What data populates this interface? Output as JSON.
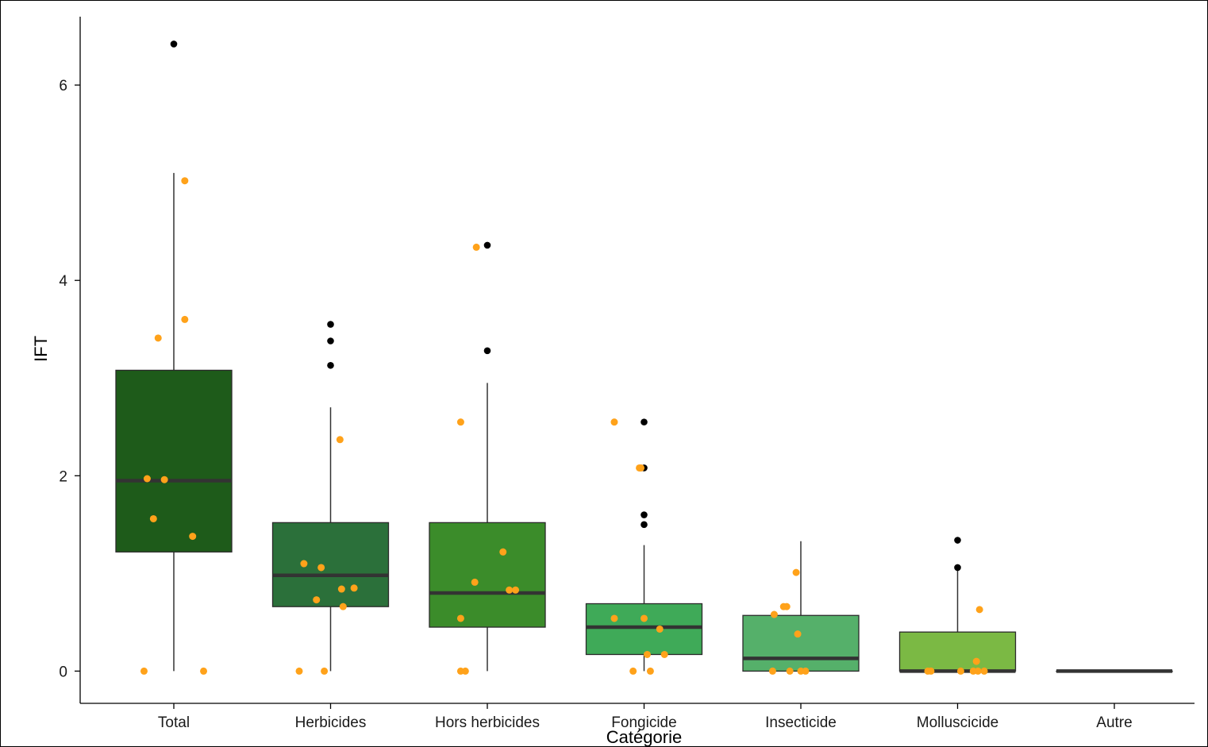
{
  "chart_data": {
    "type": "boxplot",
    "xlabel": "Catégorie",
    "ylabel": "IFT",
    "ylim": [
      -0.33,
      6.7
    ],
    "yticks": [
      0,
      2,
      4,
      6
    ],
    "categories": [
      "Total",
      "Herbicides",
      "Hors herbicides",
      "Fongicide",
      "Insecticide",
      "Molluscicide",
      "Autre"
    ],
    "fill_colors": [
      "#1e5b1a",
      "#2b703a",
      "#3b8c2a",
      "#3faa58",
      "#55b06a",
      "#7bb944",
      "#7bb944"
    ],
    "point_color": "#ffa21a",
    "outlier_color": "#000000",
    "boxes": [
      {
        "q1": 1.22,
        "median": 1.95,
        "q3": 3.08,
        "whisker_low": 0.0,
        "whisker_high": 5.1,
        "outliers": [
          6.42
        ]
      },
      {
        "q1": 0.66,
        "median": 0.98,
        "q3": 1.52,
        "whisker_low": 0.0,
        "whisker_high": 2.7,
        "outliers": [
          3.55,
          3.38,
          3.13
        ]
      },
      {
        "q1": 0.45,
        "median": 0.8,
        "q3": 1.52,
        "whisker_low": 0.0,
        "whisker_high": 2.95,
        "outliers": [
          4.36,
          3.28
        ]
      },
      {
        "q1": 0.17,
        "median": 0.45,
        "q3": 0.69,
        "whisker_low": 0.0,
        "whisker_high": 1.29,
        "outliers": [
          2.55,
          2.08,
          1.6,
          1.5
        ]
      },
      {
        "q1": 0.0,
        "median": 0.13,
        "q3": 0.57,
        "whisker_low": 0.0,
        "whisker_high": 1.33,
        "outliers": []
      },
      {
        "q1": 0.0,
        "median": 0.0,
        "q3": 0.4,
        "whisker_low": 0.0,
        "whisker_high": 1.05,
        "outliers": [
          1.34,
          1.06
        ]
      },
      {
        "q1": 0.0,
        "median": 0.0,
        "q3": 0.0,
        "whisker_low": 0.0,
        "whisker_high": 0.0,
        "outliers": []
      }
    ],
    "jitter_points": [
      [
        [
          -0.19,
          0.0
        ],
        [
          0.19,
          0.0
        ],
        [
          -0.17,
          1.97
        ],
        [
          -0.06,
          1.96
        ],
        [
          -0.13,
          1.56
        ],
        [
          0.12,
          1.38
        ],
        [
          0.07,
          3.6
        ],
        [
          0.07,
          5.02
        ],
        [
          -0.1,
          3.41
        ]
      ],
      [
        [
          -0.2,
          0.0
        ],
        [
          -0.04,
          0.0
        ],
        [
          -0.17,
          1.1
        ],
        [
          -0.06,
          1.06
        ],
        [
          -0.09,
          0.73
        ],
        [
          0.07,
          0.84
        ],
        [
          0.15,
          0.85
        ],
        [
          0.08,
          0.66
        ],
        [
          0.06,
          2.37
        ]
      ],
      [
        [
          -0.17,
          0.0
        ],
        [
          -0.14,
          0.0
        ],
        [
          -0.17,
          0.54
        ],
        [
          -0.08,
          0.91
        ],
        [
          0.1,
          1.22
        ],
        [
          0.14,
          0.83
        ],
        [
          0.18,
          0.83
        ],
        [
          -0.07,
          4.34
        ],
        [
          -0.17,
          2.55
        ]
      ],
      [
        [
          -0.07,
          0.0
        ],
        [
          0.04,
          0.0
        ],
        [
          -0.19,
          0.54
        ],
        [
          0.0,
          0.54
        ],
        [
          0.1,
          0.43
        ],
        [
          0.02,
          0.17
        ],
        [
          0.13,
          0.17
        ],
        [
          -0.19,
          2.55
        ],
        [
          -0.03,
          2.08
        ],
        [
          -0.02,
          2.08
        ]
      ],
      [
        [
          -0.18,
          0.0
        ],
        [
          -0.07,
          0.0
        ],
        [
          0.0,
          0.0
        ],
        [
          0.03,
          0.0
        ],
        [
          -0.17,
          0.58
        ],
        [
          -0.11,
          0.66
        ],
        [
          -0.09,
          0.66
        ],
        [
          -0.03,
          1.01
        ],
        [
          -0.02,
          0.38
        ]
      ],
      [
        [
          -0.19,
          0.0
        ],
        [
          -0.17,
          0.0
        ],
        [
          0.02,
          0.0
        ],
        [
          0.1,
          0.0
        ],
        [
          0.13,
          0.0
        ],
        [
          0.17,
          0.0
        ],
        [
          0.12,
          0.1
        ],
        [
          0.14,
          0.63
        ]
      ]
    ]
  }
}
